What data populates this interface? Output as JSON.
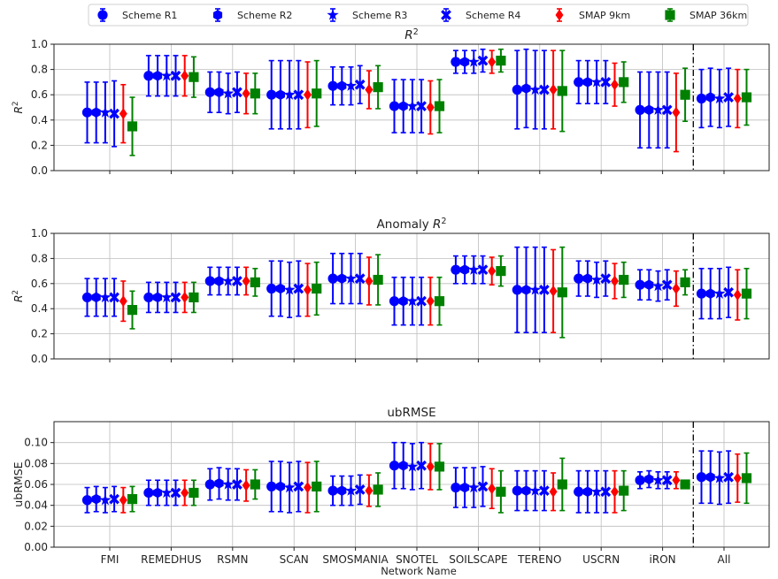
{
  "chart_data": {
    "type": "scatter",
    "xlabel": "Network Name",
    "categories": [
      "FMI",
      "REMEDHUS",
      "RSMN",
      "SCAN",
      "SMOSMANIA",
      "SNOTEL",
      "SOILSCAPE",
      "TERENO",
      "USCRN",
      "iRON",
      "All"
    ],
    "legend": {
      "placement": "top-center",
      "entries": [
        {
          "name": "Scheme R1",
          "color": "#0000ff",
          "marker": "circle"
        },
        {
          "name": "Scheme R2",
          "color": "#0000ff",
          "marker": "hexagon"
        },
        {
          "name": "Scheme R3",
          "color": "#0000ff",
          "marker": "star"
        },
        {
          "name": "Scheme R4",
          "color": "#0000ff",
          "marker": "x-filled"
        },
        {
          "name": "SMAP 9km",
          "color": "#ff0000",
          "marker": "diamond"
        },
        {
          "name": "SMAP 36km",
          "color": "#008000",
          "marker": "square"
        }
      ]
    },
    "panels": [
      {
        "title": "R²",
        "ylabel": "R²",
        "ylim": [
          0,
          1.0
        ],
        "yticks": [
          "0.0",
          "0.2",
          "0.4",
          "0.6",
          "0.8",
          "1.0"
        ],
        "grid": true,
        "separator_after": "iRON",
        "series": [
          {
            "name": "Scheme R1",
            "values": [
              0.46,
              0.75,
              0.62,
              0.6,
              0.67,
              0.51,
              0.86,
              0.64,
              0.7,
              0.48,
              0.57
            ],
            "err": [
              0.24,
              0.16,
              0.16,
              0.27,
              0.15,
              0.21,
              0.09,
              0.31,
              0.17,
              0.3,
              0.23
            ]
          },
          {
            "name": "Scheme R2",
            "values": [
              0.46,
              0.75,
              0.62,
              0.6,
              0.67,
              0.51,
              0.86,
              0.65,
              0.7,
              0.48,
              0.58
            ],
            "err": [
              0.24,
              0.16,
              0.16,
              0.27,
              0.15,
              0.21,
              0.09,
              0.31,
              0.17,
              0.3,
              0.23
            ]
          },
          {
            "name": "Scheme R3",
            "values": [
              0.46,
              0.75,
              0.61,
              0.6,
              0.67,
              0.51,
              0.86,
              0.64,
              0.7,
              0.48,
              0.57
            ],
            "err": [
              0.24,
              0.16,
              0.16,
              0.27,
              0.15,
              0.21,
              0.09,
              0.31,
              0.17,
              0.3,
              0.23
            ]
          },
          {
            "name": "Scheme R4",
            "values": [
              0.45,
              0.75,
              0.62,
              0.6,
              0.68,
              0.51,
              0.87,
              0.64,
              0.7,
              0.48,
              0.58
            ],
            "err": [
              0.26,
              0.16,
              0.16,
              0.27,
              0.15,
              0.21,
              0.09,
              0.31,
              0.17,
              0.3,
              0.23
            ]
          },
          {
            "name": "SMAP 9km",
            "values": [
              0.45,
              0.75,
              0.61,
              0.6,
              0.64,
              0.5,
              0.86,
              0.64,
              0.68,
              0.46,
              0.57
            ],
            "err": [
              0.23,
              0.16,
              0.16,
              0.26,
              0.15,
              0.21,
              0.09,
              0.31,
              0.17,
              0.31,
              0.23
            ]
          },
          {
            "name": "SMAP 36km",
            "values": [
              0.35,
              0.74,
              0.61,
              0.61,
              0.66,
              0.51,
              0.87,
              0.63,
              0.7,
              0.6,
              0.58
            ],
            "err": [
              0.23,
              0.16,
              0.16,
              0.26,
              0.17,
              0.21,
              0.09,
              0.32,
              0.16,
              0.21,
              0.22
            ]
          }
        ]
      },
      {
        "title": "Anomaly R²",
        "ylabel": "R²",
        "ylim": [
          0,
          1.0
        ],
        "yticks": [
          "0.0",
          "0.2",
          "0.4",
          "0.6",
          "0.8",
          "1.0"
        ],
        "grid": true,
        "separator_after": "iRON",
        "series": [
          {
            "name": "Scheme R1",
            "values": [
              0.49,
              0.49,
              0.62,
              0.56,
              0.64,
              0.46,
              0.71,
              0.55,
              0.64,
              0.59,
              0.52
            ],
            "err": [
              0.15,
              0.12,
              0.11,
              0.22,
              0.2,
              0.19,
              0.11,
              0.34,
              0.14,
              0.12,
              0.2
            ]
          },
          {
            "name": "Scheme R2",
            "values": [
              0.49,
              0.49,
              0.62,
              0.56,
              0.64,
              0.46,
              0.71,
              0.55,
              0.64,
              0.59,
              0.52
            ],
            "err": [
              0.15,
              0.12,
              0.11,
              0.22,
              0.2,
              0.19,
              0.11,
              0.34,
              0.14,
              0.12,
              0.2
            ]
          },
          {
            "name": "Scheme R3",
            "values": [
              0.49,
              0.49,
              0.62,
              0.55,
              0.64,
              0.46,
              0.71,
              0.55,
              0.63,
              0.58,
              0.52
            ],
            "err": [
              0.15,
              0.12,
              0.11,
              0.22,
              0.2,
              0.19,
              0.11,
              0.34,
              0.14,
              0.12,
              0.2
            ]
          },
          {
            "name": "Scheme R4",
            "values": [
              0.49,
              0.49,
              0.62,
              0.56,
              0.64,
              0.46,
              0.71,
              0.55,
              0.64,
              0.59,
              0.53
            ],
            "err": [
              0.15,
              0.12,
              0.11,
              0.22,
              0.2,
              0.19,
              0.11,
              0.34,
              0.14,
              0.12,
              0.2
            ]
          },
          {
            "name": "SMAP 9km",
            "values": [
              0.46,
              0.49,
              0.62,
              0.55,
              0.62,
              0.46,
              0.7,
              0.54,
              0.62,
              0.56,
              0.51
            ],
            "err": [
              0.16,
              0.12,
              0.11,
              0.21,
              0.19,
              0.19,
              0.11,
              0.33,
              0.14,
              0.14,
              0.2
            ]
          },
          {
            "name": "SMAP 36km",
            "values": [
              0.39,
              0.49,
              0.61,
              0.56,
              0.63,
              0.46,
              0.7,
              0.53,
              0.63,
              0.61,
              0.52
            ],
            "err": [
              0.15,
              0.12,
              0.11,
              0.21,
              0.2,
              0.19,
              0.12,
              0.36,
              0.14,
              0.1,
              0.2
            ]
          }
        ]
      },
      {
        "title": "ubRMSE",
        "ylabel": "ubRMSE",
        "ylim": [
          0,
          0.12
        ],
        "yticks": [
          "0.00",
          "0.02",
          "0.04",
          "0.06",
          "0.08",
          "0.10"
        ],
        "grid": true,
        "separator_after": "iRON",
        "series": [
          {
            "name": "Scheme R1",
            "values": [
              0.045,
              0.052,
              0.06,
              0.058,
              0.054,
              0.078,
              0.057,
              0.054,
              0.053,
              0.064,
              0.067
            ],
            "err": [
              0.012,
              0.012,
              0.015,
              0.024,
              0.014,
              0.022,
              0.019,
              0.019,
              0.02,
              0.008,
              0.025
            ]
          },
          {
            "name": "Scheme R2",
            "values": [
              0.046,
              0.052,
              0.061,
              0.058,
              0.054,
              0.078,
              0.057,
              0.054,
              0.053,
              0.065,
              0.067
            ],
            "err": [
              0.012,
              0.012,
              0.015,
              0.024,
              0.014,
              0.022,
              0.019,
              0.019,
              0.02,
              0.008,
              0.025
            ]
          },
          {
            "name": "Scheme R3",
            "values": [
              0.045,
              0.052,
              0.06,
              0.057,
              0.054,
              0.077,
              0.057,
              0.054,
              0.053,
              0.064,
              0.066
            ],
            "err": [
              0.012,
              0.012,
              0.015,
              0.024,
              0.014,
              0.022,
              0.019,
              0.019,
              0.02,
              0.008,
              0.025
            ]
          },
          {
            "name": "Scheme R4",
            "values": [
              0.046,
              0.052,
              0.06,
              0.058,
              0.055,
              0.078,
              0.058,
              0.054,
              0.053,
              0.064,
              0.067
            ],
            "err": [
              0.012,
              0.012,
              0.015,
              0.024,
              0.014,
              0.022,
              0.019,
              0.019,
              0.02,
              0.008,
              0.025
            ]
          },
          {
            "name": "SMAP 9km",
            "values": [
              0.045,
              0.052,
              0.059,
              0.057,
              0.054,
              0.077,
              0.056,
              0.053,
              0.053,
              0.064,
              0.066
            ],
            "err": [
              0.012,
              0.012,
              0.015,
              0.024,
              0.015,
              0.022,
              0.019,
              0.018,
              0.02,
              0.008,
              0.023
            ]
          },
          {
            "name": "SMAP 36km",
            "values": [
              0.046,
              0.052,
              0.06,
              0.058,
              0.055,
              0.077,
              0.053,
              0.06,
              0.054,
              0.06,
              0.066
            ],
            "err": [
              0.012,
              0.012,
              0.014,
              0.024,
              0.016,
              0.022,
              0.02,
              0.025,
              0.019,
              0.003,
              0.024
            ]
          }
        ]
      }
    ]
  }
}
